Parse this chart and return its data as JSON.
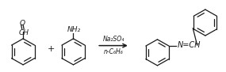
{
  "fig_width": 2.85,
  "fig_height": 0.91,
  "dpi": 100,
  "bg_color": "#ffffff",
  "line_color": "#1a1a1a",
  "line_width": 0.9,
  "arrow_above": "Na₂SO₄",
  "arrow_below": "n-C₆H₆",
  "plus_sign": "+",
  "cho_O": "O",
  "cho_CH": "CH",
  "nh2": "NH₂",
  "nch": "N=CH"
}
